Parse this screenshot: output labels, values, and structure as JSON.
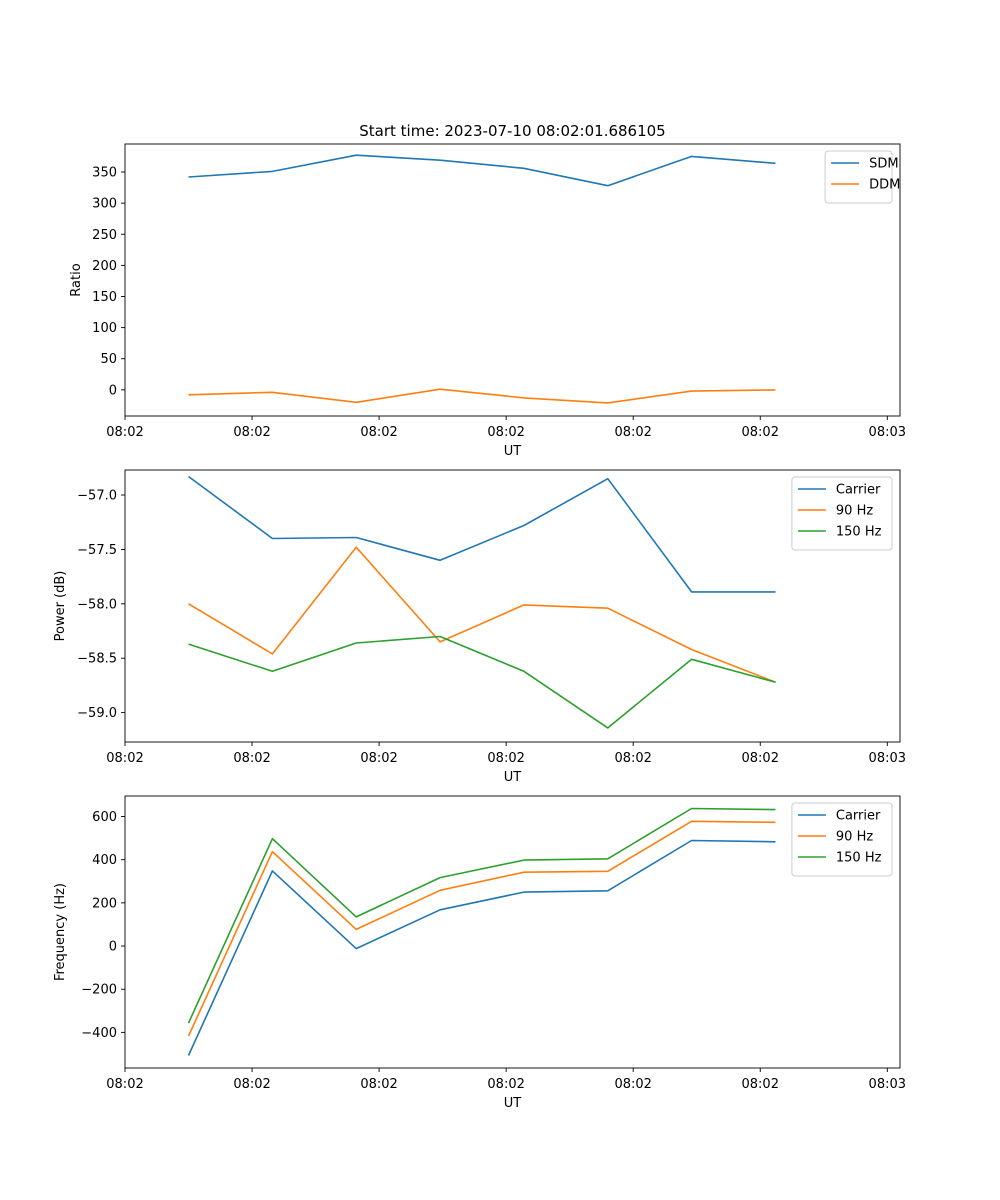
{
  "chart_data": [
    {
      "type": "line",
      "title": "Start time: 2023-07-10 08:02:01.686105",
      "xlabel": "UT",
      "ylabel": "Ratio",
      "x": [
        0.5,
        1.16,
        1.82,
        2.48,
        3.14,
        3.8,
        4.46,
        5.12
      ],
      "xlim": [
        0,
        6.1
      ],
      "x_ticks": [
        {
          "value": 0,
          "label": "08:02"
        },
        {
          "value": 1,
          "label": "08:02"
        },
        {
          "value": 2,
          "label": "08:02"
        },
        {
          "value": 3,
          "label": "08:02"
        },
        {
          "value": 4,
          "label": "08:02"
        },
        {
          "value": 5,
          "label": "08:02"
        },
        {
          "value": 6,
          "label": "08:03"
        }
      ],
      "ylim": [
        -42,
        395
      ],
      "y_ticks": [
        {
          "value": 0,
          "label": "0"
        },
        {
          "value": 50,
          "label": "50"
        },
        {
          "value": 100,
          "label": "100"
        },
        {
          "value": 150,
          "label": "150"
        },
        {
          "value": 200,
          "label": "200"
        },
        {
          "value": 250,
          "label": "250"
        },
        {
          "value": 300,
          "label": "300"
        },
        {
          "value": 350,
          "label": "350"
        }
      ],
      "legend_position": "top-right",
      "series": [
        {
          "name": "SDM",
          "color": "#1f77b4",
          "values": [
            342,
            351,
            377,
            369,
            356,
            328,
            375,
            364
          ]
        },
        {
          "name": "DDM",
          "color": "#ff7f0e",
          "values": [
            -8,
            -4,
            -20,
            1,
            -13,
            -21,
            -2,
            0
          ]
        }
      ]
    },
    {
      "type": "line",
      "title": "",
      "xlabel": "UT",
      "ylabel": "Power (dB)",
      "x": [
        0.5,
        1.16,
        1.82,
        2.48,
        3.14,
        3.8,
        4.46,
        5.12
      ],
      "xlim": [
        0,
        6.1
      ],
      "x_ticks": [
        {
          "value": 0,
          "label": "08:02"
        },
        {
          "value": 1,
          "label": "08:02"
        },
        {
          "value": 2,
          "label": "08:02"
        },
        {
          "value": 3,
          "label": "08:02"
        },
        {
          "value": 4,
          "label": "08:02"
        },
        {
          "value": 5,
          "label": "08:02"
        },
        {
          "value": 6,
          "label": "08:03"
        }
      ],
      "ylim": [
        -59.27,
        -56.77
      ],
      "y_ticks": [
        {
          "value": -59.0,
          "label": "−59.0"
        },
        {
          "value": -58.5,
          "label": "−58.5"
        },
        {
          "value": -58.0,
          "label": "−58.0"
        },
        {
          "value": -57.5,
          "label": "−57.5"
        },
        {
          "value": -57.0,
          "label": "−57.0"
        }
      ],
      "legend_position": "top-right",
      "series": [
        {
          "name": "Carrier",
          "color": "#1f77b4",
          "values": [
            -56.83,
            -57.4,
            -57.39,
            -57.6,
            -57.28,
            -56.85,
            -57.89,
            -57.89
          ]
        },
        {
          "name": "90 Hz",
          "color": "#ff7f0e",
          "values": [
            -58.0,
            -58.46,
            -57.48,
            -58.35,
            -58.01,
            -58.04,
            -58.42,
            -58.72
          ]
        },
        {
          "name": "150 Hz",
          "color": "#2ca02c",
          "values": [
            -58.37,
            -58.62,
            -58.36,
            -58.3,
            -58.62,
            -59.14,
            -58.51,
            -58.72
          ]
        }
      ]
    },
    {
      "type": "line",
      "title": "",
      "xlabel": "UT",
      "ylabel": "Frequency (Hz)",
      "x": [
        0.5,
        1.16,
        1.82,
        2.48,
        3.14,
        3.8,
        4.46,
        5.12
      ],
      "xlim": [
        0,
        6.1
      ],
      "x_ticks": [
        {
          "value": 0,
          "label": "08:02"
        },
        {
          "value": 1,
          "label": "08:02"
        },
        {
          "value": 2,
          "label": "08:02"
        },
        {
          "value": 3,
          "label": "08:02"
        },
        {
          "value": 4,
          "label": "08:02"
        },
        {
          "value": 5,
          "label": "08:02"
        },
        {
          "value": 6,
          "label": "08:03"
        }
      ],
      "ylim": [
        -565,
        695
      ],
      "y_ticks": [
        {
          "value": -400,
          "label": "−400"
        },
        {
          "value": -200,
          "label": "−200"
        },
        {
          "value": 0,
          "label": "0"
        },
        {
          "value": 200,
          "label": "200"
        },
        {
          "value": 400,
          "label": "400"
        },
        {
          "value": 600,
          "label": "600"
        }
      ],
      "legend_position": "top-right",
      "series": [
        {
          "name": "Carrier",
          "color": "#1f77b4",
          "values": [
            -507,
            348,
            -12,
            168,
            250,
            256,
            489,
            483
          ]
        },
        {
          "name": "90 Hz",
          "color": "#ff7f0e",
          "values": [
            -417,
            437,
            77,
            258,
            342,
            346,
            578,
            573
          ]
        },
        {
          "name": "150 Hz",
          "color": "#2ca02c",
          "values": [
            -357,
            497,
            135,
            317,
            398,
            404,
            637,
            632
          ]
        }
      ]
    }
  ]
}
